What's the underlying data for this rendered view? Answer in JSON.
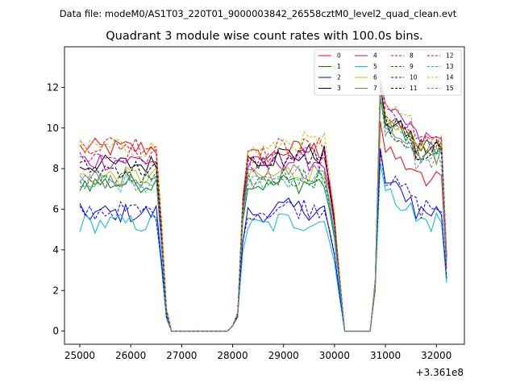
{
  "chart_data": {
    "type": "line",
    "suptitle": "Data file: modeM0/AS1T03_220T01_9000003842_26558cztM0_level2_quad_clean.evt",
    "title": "Quadrant 3 module wise count rates with 100.0s bins.",
    "xlabel": "",
    "ylabel": "",
    "x_offset_label": "+3.361e8",
    "xlim": [
      24700,
      32550
    ],
    "ylim": [
      -0.65,
      14.0
    ],
    "xticks": [
      25000,
      26000,
      27000,
      28000,
      29000,
      30000,
      31000,
      32000
    ],
    "xtick_labels": [
      "25000",
      "26000",
      "27000",
      "28000",
      "29000",
      "30000",
      "31000",
      "32000"
    ],
    "yticks": [
      0,
      2,
      4,
      6,
      8,
      10,
      12
    ],
    "ytick_labels": [
      "0",
      "2",
      "4",
      "6",
      "8",
      "10",
      "12"
    ],
    "legend_loc": "top-right",
    "grid": false,
    "x_start": 25000,
    "x_step": 100,
    "n_points": 73,
    "series": [
      {
        "name": "0",
        "color": "#ff0000",
        "dash": "solid",
        "levels": [
          9.0,
          8.6,
          8.9,
          8.8,
          0
        ]
      },
      {
        "name": "1",
        "color": "#008000",
        "dash": "solid",
        "levels": [
          7.3,
          7.2,
          7.3,
          10.4,
          0
        ]
      },
      {
        "name": "2",
        "color": "#0000ff",
        "dash": "solid",
        "levels": [
          5.8,
          5.8,
          6.0,
          7.3,
          0
        ]
      },
      {
        "name": "3",
        "color": "#000000",
        "dash": "solid",
        "levels": [
          8.2,
          8.5,
          8.7,
          10.4,
          0
        ]
      },
      {
        "name": "4",
        "color": "#bf00bf",
        "dash": "solid",
        "levels": [
          8.4,
          8.2,
          8.4,
          10.8,
          0
        ]
      },
      {
        "name": "5",
        "color": "#00bfbf",
        "dash": "solid",
        "levels": [
          5.3,
          5.2,
          5.4,
          6.8,
          0
        ]
      },
      {
        "name": "6",
        "color": "#bfbf00",
        "dash": "solid",
        "levels": [
          7.6,
          7.6,
          7.8,
          10.1,
          0
        ]
      },
      {
        "name": "7",
        "color": "#808080",
        "dash": "solid",
        "levels": [
          7.5,
          7.7,
          7.8,
          10.2,
          0
        ]
      },
      {
        "name": "8",
        "color": "#ff0000",
        "dash": "dashed",
        "levels": [
          9.2,
          8.7,
          9.0,
          10.5,
          0
        ]
      },
      {
        "name": "9",
        "color": "#008000",
        "dash": "dashed",
        "levels": [
          7.4,
          7.4,
          7.6,
          9.9,
          0
        ]
      },
      {
        "name": "10",
        "color": "#0000ff",
        "dash": "dashed",
        "levels": [
          5.9,
          5.9,
          6.1,
          7.5,
          0
        ]
      },
      {
        "name": "11",
        "color": "#000000",
        "dash": "dashed",
        "levels": [
          8.0,
          8.3,
          8.5,
          10.3,
          0
        ]
      },
      {
        "name": "12",
        "color": "#bf00bf",
        "dash": "dashed",
        "levels": [
          8.6,
          8.3,
          8.5,
          10.7,
          0
        ]
      },
      {
        "name": "13",
        "color": "#00bfbf",
        "dash": "dashed",
        "levels": [
          7.2,
          7.4,
          7.5,
          10.0,
          0
        ]
      },
      {
        "name": "14",
        "color": "#bfbf00",
        "dash": "dashed",
        "levels": [
          9.0,
          8.9,
          9.3,
          11.0,
          0
        ]
      },
      {
        "name": "15",
        "color": "#808080",
        "dash": "dashed",
        "levels": [
          7.4,
          7.5,
          7.7,
          10.0,
          0
        ]
      }
    ]
  }
}
